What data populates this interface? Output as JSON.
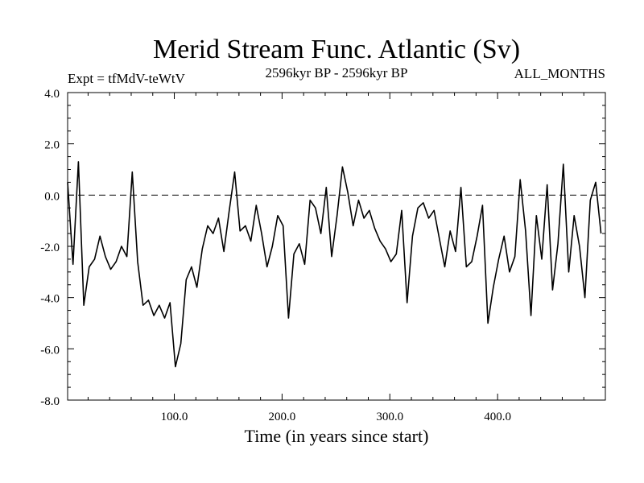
{
  "chart_data": {
    "type": "line",
    "title": "Merid Stream Func. Atlantic (Sv)",
    "subtitle_left": "Expt = tfMdV-teWtV",
    "subtitle_center": "2596kyr BP - 2596kyr BP",
    "subtitle_right": "ALL_MONTHS",
    "xlabel": "Time (in years since start)",
    "ylabel": "",
    "xlim": [
      1,
      500
    ],
    "ylim": [
      -8.0,
      4.0
    ],
    "xticks": [
      100,
      200,
      300,
      400
    ],
    "xtick_labels": [
      "100.0",
      "200.0",
      "300.0",
      "400.0"
    ],
    "yticks": [
      -8,
      -6,
      -4,
      -2,
      0,
      2,
      4
    ],
    "ytick_labels": [
      "-8.0",
      "-6.0",
      "-4.0",
      "-2.0",
      "0.0",
      "2.0",
      "4.0"
    ],
    "reference_line": {
      "y": 0.0,
      "style": "dashed"
    },
    "series": [
      {
        "name": "Merid Stream Func. Atlantic",
        "x_start": 1,
        "x_step": 5,
        "values": [
          0.5,
          -2.7,
          1.3,
          -4.3,
          -2.8,
          -2.5,
          -1.6,
          -2.4,
          -2.9,
          -2.6,
          -2.0,
          -2.4,
          0.9,
          -2.6,
          -4.3,
          -4.1,
          -4.7,
          -4.3,
          -4.8,
          -4.2,
          -6.7,
          -5.8,
          -3.3,
          -2.8,
          -3.6,
          -2.1,
          -1.2,
          -1.5,
          -0.9,
          -2.2,
          -0.6,
          0.9,
          -1.4,
          -1.2,
          -1.8,
          -0.4,
          -1.5,
          -2.8,
          -2.0,
          -0.8,
          -1.2,
          -4.8,
          -2.3,
          -1.9,
          -2.7,
          -0.2,
          -0.5,
          -1.5,
          0.3,
          -2.4,
          -0.8,
          1.1,
          0.1,
          -1.2,
          -0.2,
          -0.9,
          -0.6,
          -1.3,
          -1.8,
          -2.1,
          -2.6,
          -2.3,
          -0.6,
          -4.2,
          -1.6,
          -0.5,
          -0.3,
          -0.9,
          -0.6,
          -1.7,
          -2.8,
          -1.4,
          -2.2,
          0.3,
          -2.8,
          -2.6,
          -1.6,
          -0.4,
          -5.0,
          -3.6,
          -2.5,
          -1.6,
          -3.0,
          -2.4,
          0.6,
          -1.4,
          -4.7,
          -0.8,
          -2.5,
          0.4,
          -3.7,
          -1.9,
          1.2,
          -3.0,
          -0.8,
          -2.0,
          -4.0,
          -0.2,
          0.5,
          -1.5
        ]
      }
    ]
  }
}
